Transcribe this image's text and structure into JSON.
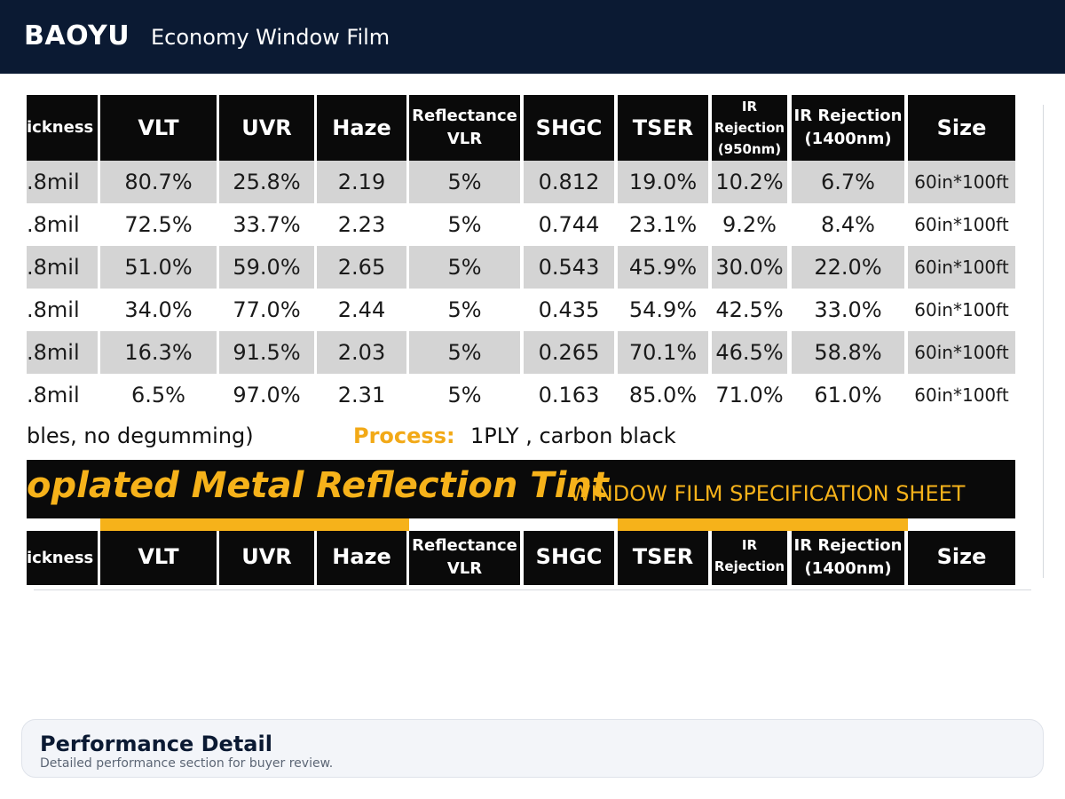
{
  "header": {
    "brand": "BAOYU",
    "subtitle": "Economy Window Film"
  },
  "spec_table": {
    "columns": [
      "ickness",
      "VLT",
      "UVR",
      "Haze",
      "Reflectance VLR",
      "SHGC",
      "TSER",
      "IR Rejection (950nm)",
      "IR Rejection (1400nm)",
      "Size"
    ],
    "header_cells": {
      "thickness": "ickness",
      "vlt": "VLT",
      "uvr": "UVR",
      "haze": "Haze",
      "reflectance": "Reflectance VLR",
      "shgc": "SHGC",
      "tser": "TSER",
      "ir950": "IR Rejection (950nm)",
      "ir1400": "IR Rejection (1400nm)",
      "size": "Size"
    },
    "rows": [
      {
        "thickness": ".8mil",
        "vlt": "80.7%",
        "uvr": "25.8%",
        "haze": "2.19",
        "reflectance": "5%",
        "shgc": "0.812",
        "tser": "19.0%",
        "ir950": "10.2%",
        "ir1400": "6.7%",
        "size": "60in*100ft"
      },
      {
        "thickness": ".8mil",
        "vlt": "72.5%",
        "uvr": "33.7%",
        "haze": "2.23",
        "reflectance": "5%",
        "shgc": "0.744",
        "tser": "23.1%",
        "ir950": "9.2%",
        "ir1400": "8.4%",
        "size": "60in*100ft"
      },
      {
        "thickness": ".8mil",
        "vlt": "51.0%",
        "uvr": "59.0%",
        "haze": "2.65",
        "reflectance": "5%",
        "shgc": "0.543",
        "tser": "45.9%",
        "ir950": "30.0%",
        "ir1400": "22.0%",
        "size": "60in*100ft"
      },
      {
        "thickness": ".8mil",
        "vlt": "34.0%",
        "uvr": "77.0%",
        "haze": "2.44",
        "reflectance": "5%",
        "shgc": "0.435",
        "tser": "54.9%",
        "ir950": "42.5%",
        "ir1400": "33.0%",
        "size": "60in*100ft"
      },
      {
        "thickness": ".8mil",
        "vlt": "16.3%",
        "uvr": "91.5%",
        "haze": "2.03",
        "reflectance": "5%",
        "shgc": "0.265",
        "tser": "70.1%",
        "ir950": "46.5%",
        "ir1400": "58.8%",
        "size": "60in*100ft"
      },
      {
        "thickness": ".8mil",
        "vlt": "6.5%",
        "uvr": "97.0%",
        "haze": "2.31",
        "reflectance": "5%",
        "shgc": "0.163",
        "tser": "85.0%",
        "ir950": "71.0%",
        "ir1400": "61.0%",
        "size": "60in*100ft"
      }
    ],
    "note_left": "bles, no degumming)",
    "process_label": "Process:",
    "process_value": "1PLY , carbon black"
  },
  "banner": {
    "title": "oplated Metal Reflection Tint",
    "subtitle": "WINDOW FILM SPECIFICATION SHEET"
  },
  "second_table_header": {
    "thickness": "ickness",
    "vlt": "VLT",
    "uvr": "UVR",
    "haze": "Haze",
    "reflectance": "Reflectance VLR",
    "shgc": "SHGC",
    "tser": "TSER",
    "ir950": "IR Rejection",
    "ir1400": "IR Rejection (1400nm)",
    "size": "Size"
  },
  "performance": {
    "title": "Performance Detail",
    "description": "Detailed performance section for buyer review."
  },
  "colors": {
    "header_bg": "#0b1a33",
    "accent": "#f6b21a",
    "table_header_bg": "#0a0a0a",
    "row_gray": "#d4d4d4"
  }
}
